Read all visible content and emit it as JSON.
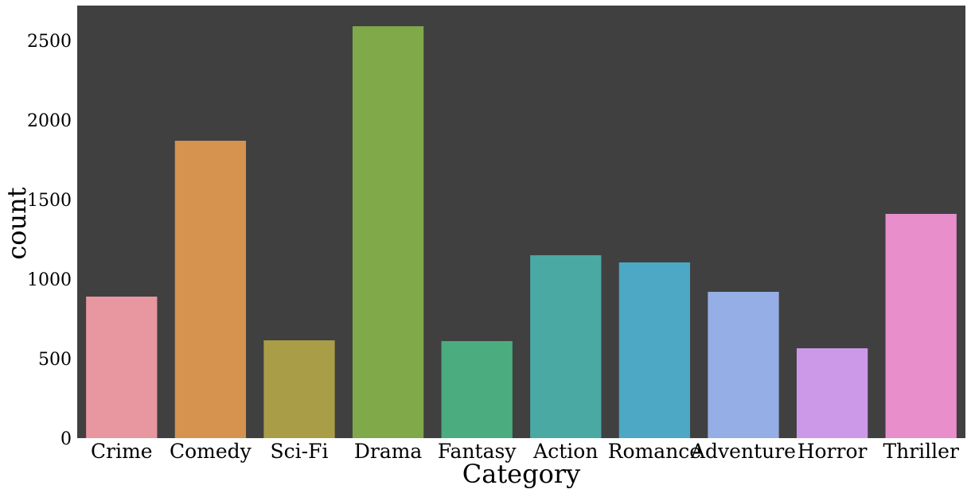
{
  "chart_data": {
    "type": "bar",
    "title": "",
    "xlabel": "Category",
    "ylabel": "count",
    "categories": [
      "Crime",
      "Comedy",
      "Sci-Fi",
      "Drama",
      "Fantasy",
      "Action",
      "Romance",
      "Adventure",
      "Horror",
      "Thriller"
    ],
    "values": [
      890,
      1870,
      615,
      2590,
      610,
      1150,
      1105,
      920,
      565,
      1410
    ],
    "colors": [
      "#e8969f",
      "#d6934f",
      "#aa9d47",
      "#80a949",
      "#4bad7f",
      "#4ba9a4",
      "#4ca8c4",
      "#96aee6",
      "#cc98e8",
      "#e88ecb"
    ],
    "ylim": [
      0,
      2720
    ],
    "yticks": [
      0,
      500,
      1000,
      1500,
      2000,
      2500
    ],
    "plot_background": "#404040",
    "grid": false
  }
}
